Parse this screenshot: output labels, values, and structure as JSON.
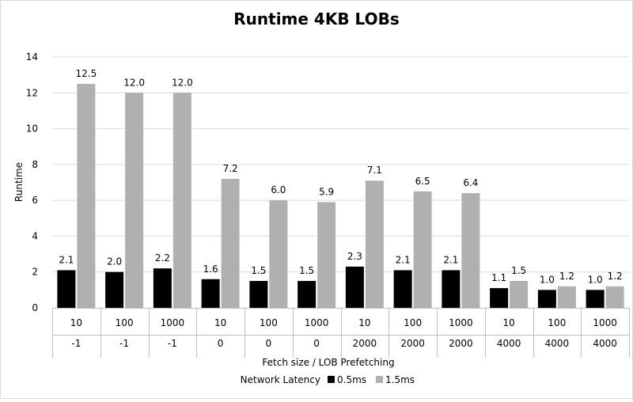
{
  "chart_data": {
    "type": "bar",
    "title": "Runtime 4KB LOBs",
    "ylabel": "Runtime",
    "xlabel": "Fetch size / LOB Prefetching",
    "ylim": [
      0,
      14
    ],
    "yticks": [
      0,
      2,
      4,
      6,
      8,
      10,
      12,
      14
    ],
    "grid": true,
    "legend": {
      "title": "Network Latency",
      "placement": "bottom"
    },
    "categories": [
      {
        "fetch": "10",
        "prefetch": "-1"
      },
      {
        "fetch": "100",
        "prefetch": "-1"
      },
      {
        "fetch": "1000",
        "prefetch": "-1"
      },
      {
        "fetch": "10",
        "prefetch": "0"
      },
      {
        "fetch": "100",
        "prefetch": "0"
      },
      {
        "fetch": "1000",
        "prefetch": "0"
      },
      {
        "fetch": "10",
        "prefetch": "2000"
      },
      {
        "fetch": "100",
        "prefetch": "2000"
      },
      {
        "fetch": "1000",
        "prefetch": "2000"
      },
      {
        "fetch": "10",
        "prefetch": "4000"
      },
      {
        "fetch": "100",
        "prefetch": "4000"
      },
      {
        "fetch": "1000",
        "prefetch": "4000"
      }
    ],
    "series": [
      {
        "name": "0.5ms",
        "color": "#000000",
        "values": [
          2.1,
          2.0,
          2.2,
          1.6,
          1.5,
          1.5,
          2.3,
          2.1,
          2.1,
          1.1,
          1.0,
          1.0
        ]
      },
      {
        "name": "1.5ms",
        "color": "#b0b0b0",
        "values": [
          12.5,
          12.0,
          12.0,
          7.2,
          6.0,
          5.9,
          7.1,
          6.5,
          6.4,
          1.5,
          1.2,
          1.2
        ]
      }
    ]
  }
}
